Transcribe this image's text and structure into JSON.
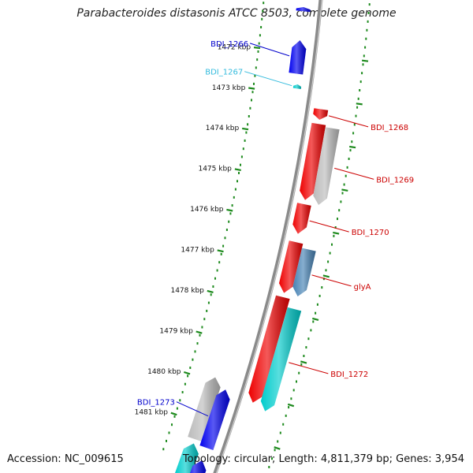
{
  "title": "Parabacteroides distasonis ATCC 8503, complete genome",
  "footer": {
    "accession": "Accession: NC_009615",
    "summary": "Topology: circular; Length: 4,811,379 bp; Genes: 3,954"
  },
  "colors": {
    "backbone": "#8a8a8a",
    "tick_dots": "#1d8a1d",
    "forward_gene_label": "#0000cc",
    "reverse_gene_label": "#cc0000",
    "trna_label": "#33bbdd",
    "cds_blue": "#0000ee",
    "cds_red": "#ee0000",
    "cds_cyan": "#00cccc",
    "cds_grey": "#bbbbbb",
    "cds_steelblue": "#4682b4"
  },
  "axis": {
    "unit": "kbp",
    "ticks": [
      {
        "pos": 1472,
        "label": "1472 kbp"
      },
      {
        "pos": 1473,
        "label": "1473 kbp"
      },
      {
        "pos": 1474,
        "label": "1474 kbp"
      },
      {
        "pos": 1475,
        "label": "1475 kbp"
      },
      {
        "pos": 1476,
        "label": "1476 kbp"
      },
      {
        "pos": 1477,
        "label": "1477 kbp"
      },
      {
        "pos": 1478,
        "label": "1478 kbp"
      },
      {
        "pos": 1479,
        "label": "1479 kbp"
      },
      {
        "pos": 1480,
        "label": "1480 kbp"
      },
      {
        "pos": 1481,
        "label": "1481 kbp"
      }
    ]
  },
  "features": [
    {
      "start": 1470.9,
      "end": 1471.0,
      "strand": "+",
      "color": "cds_blue"
    },
    {
      "start": 1471.7,
      "end": 1472.5,
      "strand": "+",
      "color": "cds_blue",
      "label": "BDI_1266",
      "label_color": "forward_gene_label"
    },
    {
      "start": 1472.75,
      "end": 1472.85,
      "strand": "+",
      "color": "cds_cyan",
      "label": "BDI_1267",
      "label_color": "trna_label"
    },
    {
      "start": 1473.25,
      "end": 1473.5,
      "strand": "-",
      "color": "cds_red",
      "label": "BDI_1268",
      "label_color": "reverse_gene_label"
    },
    {
      "start": 1473.6,
      "end": 1475.4,
      "strand": "-",
      "color": "cds_red"
    },
    {
      "start": 1473.65,
      "end": 1475.45,
      "strand": "-",
      "color": "cds_grey",
      "label": "BDI_1269",
      "label_color": "reverse_gene_label"
    },
    {
      "start": 1475.5,
      "end": 1476.2,
      "strand": "-",
      "color": "cds_red",
      "label": "BDI_1270",
      "label_color": "reverse_gene_label"
    },
    {
      "start": 1476.4,
      "end": 1477.6,
      "strand": "-",
      "color": "cds_red"
    },
    {
      "start": 1476.5,
      "end": 1477.6,
      "strand": "-",
      "color": "cds_steelblue",
      "label": "glyA",
      "label_color": "reverse_gene_label"
    },
    {
      "start": 1477.7,
      "end": 1480.2,
      "strand": "-",
      "color": "cds_red"
    },
    {
      "start": 1477.9,
      "end": 1480.3,
      "strand": "-",
      "color": "cds_cyan",
      "label": "BDI_1272",
      "label_color": "reverse_gene_label"
    },
    {
      "start": 1479.9,
      "end": 1481.4,
      "strand": "+",
      "color": "cds_grey"
    },
    {
      "start": 1480.1,
      "end": 1481.5,
      "strand": "+",
      "color": "cds_blue",
      "label": "BDI_1273",
      "label_color": "forward_gene_label"
    },
    {
      "start": 1481.5,
      "end": 1482.3,
      "strand": "+",
      "color": "cds_cyan"
    },
    {
      "start": 1481.8,
      "end": 1482.5,
      "strand": "+",
      "color": "cds_blue"
    }
  ]
}
